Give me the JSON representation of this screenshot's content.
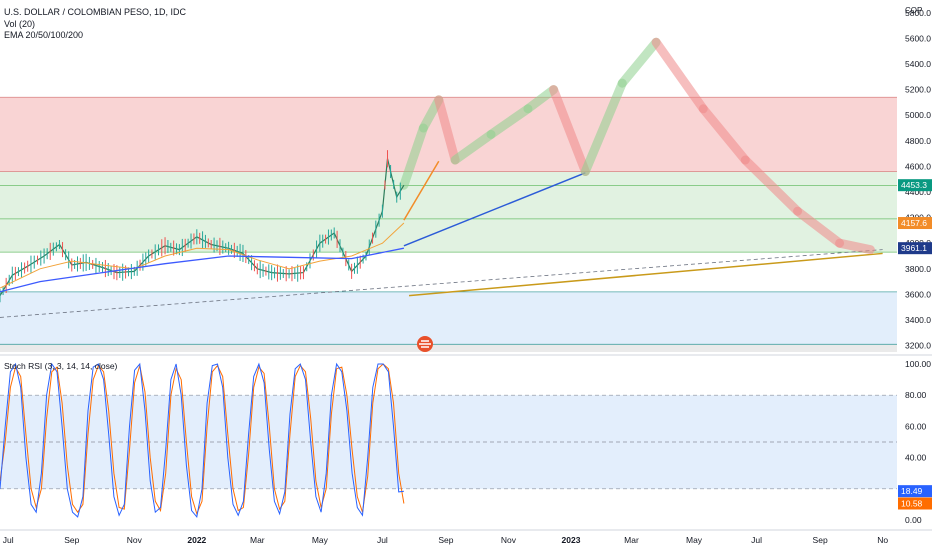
{
  "header": {
    "title": "U.S. DOLLAR / COLOMBIAN PESO, 1D, IDC",
    "vol": "Vol (20)",
    "ema": "EMA 20/50/100/200",
    "currency": "COP"
  },
  "colors": {
    "resistance_zone": "#f7c9c9",
    "support_zone": "#d9efd9",
    "low_zone": "#dbeafa",
    "gray_zone": "#e5e5e5",
    "ema_fast": "#f2a33a",
    "ema_slow": "#3d5afe",
    "projection_up": "#8fd18f",
    "projection_down": "#f08a8a",
    "trend_orange": "#f28c28",
    "trend_blue": "#2b5bd7",
    "trend_gold": "#c99a1a",
    "rsi_k": "#2962ff",
    "rsi_d": "#ff6d00",
    "price_badge": "#089981",
    "ema_badge": "#f28c28",
    "ema200_badge": "#1e3a8a"
  },
  "chart_data": [
    {
      "type": "line",
      "name": "price",
      "ylim": [
        3150,
        5900
      ],
      "y_ticks": [
        "5800.0",
        "5600.0",
        "5400.0",
        "5200.0",
        "5000.0",
        "4800.0",
        "4600.0",
        "4400.0",
        "4200.0",
        "4000.0",
        "3800.0",
        "3600.0",
        "3400.0",
        "3200.0"
      ],
      "x_ticks": [
        {
          "label": "Jul",
          "date": "2021-07-01",
          "bold": false
        },
        {
          "label": "Sep",
          "date": "2021-09-01",
          "bold": false
        },
        {
          "label": "Nov",
          "date": "2021-11-01",
          "bold": false
        },
        {
          "label": "2022",
          "date": "2022-01-01",
          "bold": true
        },
        {
          "label": "Mar",
          "date": "2022-03-01",
          "bold": false
        },
        {
          "label": "May",
          "date": "2022-05-01",
          "bold": false
        },
        {
          "label": "Jul",
          "date": "2022-07-01",
          "bold": false
        },
        {
          "label": "Sep",
          "date": "2022-09-01",
          "bold": false
        },
        {
          "label": "Nov",
          "date": "2022-11-01",
          "bold": false
        },
        {
          "label": "2023",
          "date": "2023-01-01",
          "bold": true
        },
        {
          "label": "Mar",
          "date": "2023-03-01",
          "bold": false
        },
        {
          "label": "May",
          "date": "2023-05-01",
          "bold": false
        },
        {
          "label": "Jul",
          "date": "2023-07-01",
          "bold": false
        },
        {
          "label": "Sep",
          "date": "2023-09-01",
          "bold": false
        },
        {
          "label": "No",
          "date": "2023-11-01",
          "bold": false
        }
      ],
      "price_labels": [
        {
          "value": 4453.3,
          "text": "4453.3",
          "role": "last-price"
        },
        {
          "value": 4157.6,
          "text": "4157.6",
          "role": "ema-fast"
        },
        {
          "value": 3961.1,
          "text": "3961.1",
          "role": "ema-slow"
        }
      ],
      "zones": [
        {
          "name": "resistance",
          "from": 4560,
          "to": 5140
        },
        {
          "name": "support",
          "from": 3930,
          "to": 4560
        },
        {
          "name": "low",
          "from": 3210,
          "to": 3620
        },
        {
          "name": "gray",
          "from": 3150,
          "to": 3210
        }
      ],
      "horizontal_levels": [
        5140,
        4560,
        4450,
        4190,
        3930,
        3620,
        3210
      ],
      "price_series": [
        [
          "2021-06-23",
          3590
        ],
        [
          "2021-07-05",
          3750
        ],
        [
          "2021-07-20",
          3820
        ],
        [
          "2021-08-05",
          3900
        ],
        [
          "2021-08-20",
          3990
        ],
        [
          "2021-09-01",
          3830
        ],
        [
          "2021-09-15",
          3850
        ],
        [
          "2021-10-01",
          3810
        ],
        [
          "2021-10-15",
          3770
        ],
        [
          "2021-11-01",
          3780
        ],
        [
          "2021-11-15",
          3900
        ],
        [
          "2021-12-01",
          3980
        ],
        [
          "2021-12-15",
          3950
        ],
        [
          "2022-01-01",
          4050
        ],
        [
          "2022-01-15",
          3990
        ],
        [
          "2022-02-01",
          3960
        ],
        [
          "2022-02-15",
          3920
        ],
        [
          "2022-03-01",
          3800
        ],
        [
          "2022-03-15",
          3770
        ],
        [
          "2022-04-01",
          3760
        ],
        [
          "2022-04-15",
          3770
        ],
        [
          "2022-05-01",
          4000
        ],
        [
          "2022-05-15",
          4080
        ],
        [
          "2022-06-01",
          3780
        ],
        [
          "2022-06-15",
          3900
        ],
        [
          "2022-07-01",
          4250
        ],
        [
          "2022-07-06",
          4660
        ],
        [
          "2022-07-15",
          4360
        ],
        [
          "2022-07-22",
          4453
        ]
      ],
      "ema_fast_series": [
        [
          "2021-06-23",
          3650
        ],
        [
          "2021-08-01",
          3800
        ],
        [
          "2021-09-01",
          3860
        ],
        [
          "2021-10-01",
          3830
        ],
        [
          "2021-11-01",
          3800
        ],
        [
          "2021-12-01",
          3900
        ],
        [
          "2022-01-01",
          3960
        ],
        [
          "2022-02-01",
          3950
        ],
        [
          "2022-03-01",
          3870
        ],
        [
          "2022-04-01",
          3800
        ],
        [
          "2022-05-01",
          3860
        ],
        [
          "2022-06-01",
          3900
        ],
        [
          "2022-07-01",
          4000
        ],
        [
          "2022-07-22",
          4157.6
        ]
      ],
      "ema_slow_series": [
        [
          "2021-06-23",
          3620
        ],
        [
          "2021-08-01",
          3700
        ],
        [
          "2021-10-01",
          3770
        ],
        [
          "2021-12-01",
          3840
        ],
        [
          "2022-02-01",
          3900
        ],
        [
          "2022-04-01",
          3890
        ],
        [
          "2022-06-01",
          3880
        ],
        [
          "2022-07-22",
          3961.1
        ]
      ],
      "projection_series": [
        [
          "2022-07-22",
          4453
        ],
        [
          "2022-08-10",
          4900
        ],
        [
          "2022-08-25",
          5120
        ],
        [
          "2022-09-10",
          4650
        ],
        [
          "2022-10-15",
          4850
        ],
        [
          "2022-11-20",
          5050
        ],
        [
          "2022-12-15",
          5200
        ],
        [
          "2023-01-15",
          4560
        ],
        [
          "2023-02-20",
          5250
        ],
        [
          "2023-03-25",
          5570
        ],
        [
          "2023-05-10",
          5050
        ],
        [
          "2023-06-20",
          4650
        ],
        [
          "2023-08-10",
          4250
        ],
        [
          "2023-09-20",
          4000
        ],
        [
          "2023-10-20",
          3950
        ]
      ],
      "trend_lines": [
        {
          "name": "orange",
          "from": [
            "2022-07-22",
            4180
          ],
          "to": [
            "2022-08-25",
            4640
          ]
        },
        {
          "name": "blue",
          "from": [
            "2022-07-22",
            3980
          ],
          "to": [
            "2023-01-15",
            4550
          ]
        },
        {
          "name": "gold",
          "from": [
            "2022-07-27",
            3590
          ],
          "to": [
            "2023-11-01",
            3920
          ]
        },
        {
          "name": "dashed",
          "from": [
            "2021-06-23",
            3420
          ],
          "to": [
            "2023-11-01",
            3950
          ]
        }
      ]
    },
    {
      "type": "line",
      "name": "Stoch RSI",
      "title": "Stoch RSI (3, 3, 14, 14, close)",
      "ylim": [
        0,
        100
      ],
      "y_ticks": [
        "100.00",
        "80.00",
        "60.00",
        "40.00",
        "20.00",
        "0.00"
      ],
      "levels": [
        80,
        50,
        20
      ],
      "labels": [
        {
          "value": 18.49,
          "text": "18.49",
          "series": "k"
        },
        {
          "value": 10.58,
          "text": "10.58",
          "series": "d"
        }
      ],
      "k": [
        20,
        60,
        95,
        100,
        85,
        40,
        10,
        5,
        30,
        80,
        100,
        95,
        60,
        20,
        5,
        2,
        15,
        70,
        98,
        100,
        90,
        55,
        15,
        3,
        10,
        60,
        96,
        100,
        70,
        25,
        5,
        8,
        45,
        90,
        100,
        80,
        35,
        6,
        2,
        20,
        75,
        99,
        100,
        85,
        40,
        10,
        3,
        12,
        55,
        92,
        100,
        88,
        45,
        12,
        4,
        18,
        68,
        97,
        100,
        90,
        50,
        15,
        5,
        30,
        80,
        100,
        95,
        70,
        30,
        8,
        3,
        40,
        85,
        100,
        100,
        95,
        60,
        18,
        18.49
      ],
      "d": [
        25,
        50,
        85,
        98,
        92,
        55,
        20,
        8,
        20,
        65,
        95,
        98,
        75,
        35,
        10,
        5,
        10,
        55,
        90,
        99,
        95,
        70,
        30,
        8,
        7,
        45,
        88,
        99,
        82,
        40,
        12,
        6,
        30,
        80,
        97,
        90,
        50,
        15,
        4,
        12,
        60,
        95,
        99,
        92,
        55,
        20,
        6,
        8,
        42,
        85,
        98,
        94,
        60,
        20,
        7,
        12,
        55,
        92,
        99,
        95,
        65,
        25,
        8,
        20,
        68,
        97,
        98,
        80,
        45,
        15,
        5,
        28,
        75,
        97,
        100,
        97,
        75,
        30,
        10.58
      ]
    }
  ]
}
